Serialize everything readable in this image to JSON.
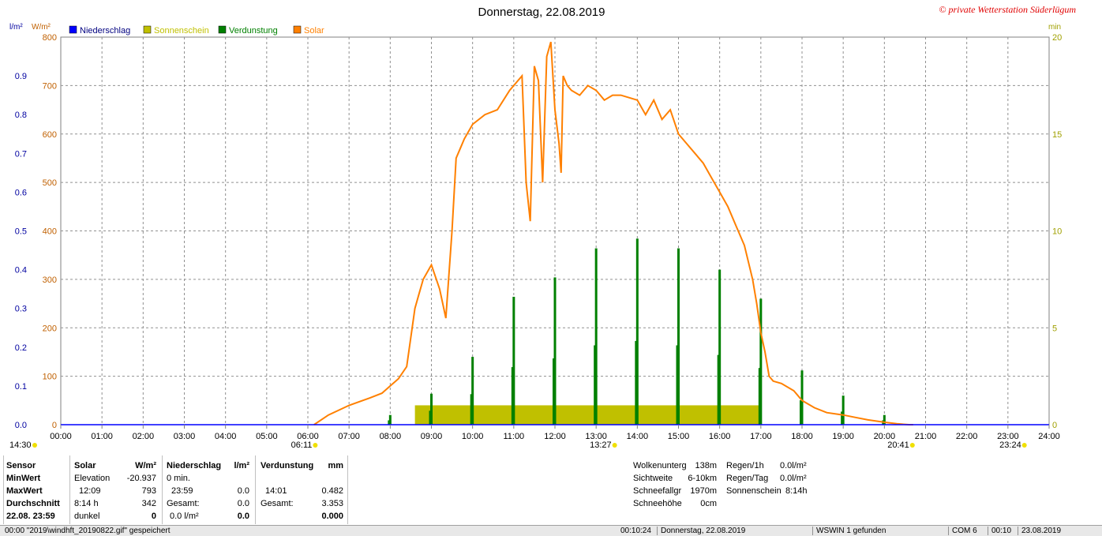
{
  "header": {
    "title": "Donnerstag, 22.08.2019",
    "copyright": "© private Wetterstation Süderlügum"
  },
  "legend": [
    {
      "label": "Niederschlag",
      "color": "#0000ff"
    },
    {
      "label": "Sonnenschein",
      "color": "#c0c000"
    },
    {
      "label": "Verdunstung",
      "color": "#008000"
    },
    {
      "label": "Solar",
      "color": "#ff8000"
    }
  ],
  "colors": {
    "solar": "#ff8000",
    "sun": "#c0c000",
    "evap": "#008000",
    "rain": "#0000ff",
    "left_axis": "#0000a0",
    "right_axis": "#a0a000"
  },
  "chart_data": {
    "type": "line",
    "title": "Donnerstag, 22.08.2019",
    "left_axis_units": "l/m²",
    "left2_axis_units": "W/m²",
    "right_axis_units": "min",
    "ylim_rain": [
      0,
      1.0
    ],
    "ylim_solar": [
      0,
      800
    ],
    "ylim_min": [
      0,
      20
    ],
    "rain_ticks": [
      "0.0",
      "0.1",
      "0.2",
      "0.3",
      "0.4",
      "0.5",
      "0.6",
      "0.7",
      "0.8",
      "0.9"
    ],
    "solar_ticks": [
      "0",
      "100",
      "200",
      "300",
      "400",
      "500",
      "600",
      "700",
      "800"
    ],
    "min_ticks": [
      "0",
      "5",
      "10",
      "15",
      "20"
    ],
    "x_ticks": [
      "00:00",
      "01:00",
      "02:00",
      "03:00",
      "04:00",
      "05:00",
      "06:00",
      "07:00",
      "08:00",
      "09:00",
      "10:00",
      "11:00",
      "12:00",
      "13:00",
      "14:00",
      "15:00",
      "16:00",
      "17:00",
      "18:00",
      "19:00",
      "20:00",
      "21:00",
      "22:00",
      "23:00",
      "24:00"
    ],
    "grid": true,
    "markers": [
      {
        "label": "14:30",
        "hour": 0.0
      },
      {
        "label": "06:11",
        "hour": 6.18
      },
      {
        "label": "13:27",
        "hour": 13.45
      },
      {
        "label": "20:41",
        "hour": 20.68
      },
      {
        "label": "23:24",
        "hour": 23.4
      }
    ],
    "solar_series": {
      "name": "Solar",
      "hours": [
        6.15,
        6.5,
        7.0,
        7.5,
        7.8,
        8.0,
        8.2,
        8.4,
        8.6,
        8.7,
        8.8,
        9.0,
        9.2,
        9.35,
        9.5,
        9.6,
        9.7,
        9.8,
        10.0,
        10.3,
        10.6,
        10.9,
        11.0,
        11.2,
        11.3,
        11.4,
        11.5,
        11.6,
        11.7,
        11.8,
        11.9,
        12.0,
        12.1,
        12.15,
        12.2,
        12.3,
        12.4,
        12.6,
        12.8,
        13.0,
        13.2,
        13.4,
        13.6,
        13.8,
        14.0,
        14.2,
        14.4,
        14.6,
        14.8,
        15.0,
        15.2,
        15.4,
        15.6,
        15.8,
        16.0,
        16.2,
        16.4,
        16.6,
        16.8,
        16.9,
        17.0,
        17.1,
        17.2,
        17.3,
        17.5,
        17.8,
        18.0,
        18.3,
        18.6,
        19.0,
        19.3,
        19.6,
        20.0,
        20.3,
        20.6,
        20.7
      ],
      "values": [
        0,
        20,
        40,
        55,
        65,
        80,
        95,
        120,
        240,
        270,
        300,
        330,
        280,
        220,
        400,
        550,
        570,
        590,
        620,
        640,
        650,
        690,
        700,
        720,
        500,
        420,
        740,
        710,
        500,
        760,
        790,
        650,
        580,
        520,
        720,
        700,
        690,
        680,
        700,
        690,
        670,
        680,
        680,
        675,
        670,
        640,
        670,
        630,
        650,
        600,
        580,
        560,
        540,
        510,
        480,
        450,
        410,
        370,
        300,
        250,
        190,
        150,
        100,
        90,
        85,
        70,
        50,
        35,
        25,
        20,
        15,
        10,
        5,
        2,
        0,
        0
      ]
    },
    "sun_series": {
      "name": "Sonnenschein",
      "start_hour": 8.6,
      "end_hour": 16.95,
      "value_min": 1.0
    },
    "evap_series": {
      "name": "Verdunstung",
      "hours": [
        8.0,
        9.0,
        10.0,
        11.0,
        12.0,
        13.0,
        14.0,
        15.0,
        16.0,
        17.0,
        18.0,
        19.0,
        20.0
      ],
      "values_min": [
        0.5,
        1.6,
        3.5,
        6.6,
        7.6,
        9.1,
        9.6,
        9.1,
        8.0,
        6.5,
        2.8,
        1.5,
        0.5
      ]
    }
  },
  "info": {
    "col1": [
      "Sensor",
      "MinWert",
      "MaxWert",
      "Durchschnitt",
      "22.08. 23:59"
    ],
    "solar_head": "Solar",
    "solar_unit": "W/m²",
    "solar_rows": [
      [
        "Elevation",
        "-20.937"
      ],
      [
        "12:09",
        "793"
      ],
      [
        "8:14 h",
        "342"
      ],
      [
        "dunkel",
        "0"
      ]
    ],
    "rain_head": "Niederschlag",
    "rain_unit": "l/m²",
    "rain_rows": [
      [
        "0 min.",
        ""
      ],
      [
        "23:59",
        "0.0"
      ],
      [
        "Gesamt:",
        "0.0"
      ],
      [
        "0.0 l/m²",
        "0.0"
      ]
    ],
    "evap_head": "Verdunstung",
    "evap_unit": "mm",
    "evap_rows": [
      [
        "",
        ""
      ],
      [
        "14:01",
        "0.482"
      ],
      [
        "Gesamt:",
        "3.353"
      ],
      [
        "",
        "0.000"
      ]
    ],
    "weather": [
      [
        "Wolkenunterg",
        "138m"
      ],
      [
        "Sichtweite",
        "6-10km"
      ],
      [
        "Schneefallgr",
        "1970m"
      ],
      [
        "Schneehöhe",
        "0cm"
      ]
    ],
    "rain_extra": [
      [
        "Regen/1h",
        "0.0l/m²"
      ],
      [
        "Regen/Tag",
        "0.0l/m²"
      ],
      [
        "Sonnenschein",
        "8:14h"
      ]
    ]
  },
  "status": {
    "file": "00:00 \"2019\\windhft_20190822.gif\" gespeichert",
    "time1": "00:10:24",
    "date": "Donnerstag, 22.08.2019",
    "ws": "WSWIN 1 gefunden",
    "com": "COM 6",
    "time2": "00:10",
    "date2": "23.08.2019"
  }
}
